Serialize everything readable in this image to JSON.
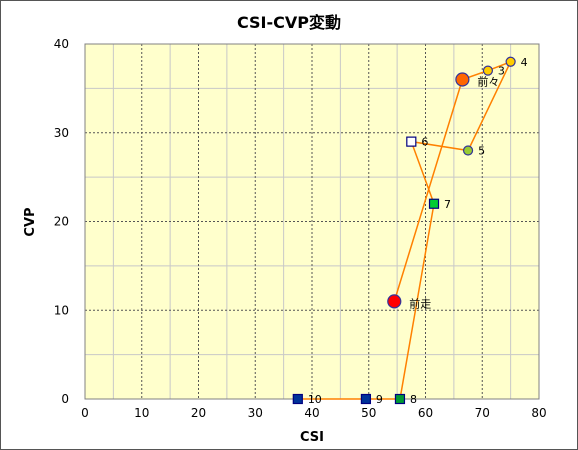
{
  "chart_data": {
    "type": "scatter",
    "title": "CSI-CVP変動",
    "xlabel": "CSI",
    "ylabel": "CVP",
    "xlim": [
      0,
      80
    ],
    "ylim": [
      0,
      40
    ],
    "x_ticks": [
      0,
      10,
      20,
      30,
      40,
      50,
      60,
      70,
      80
    ],
    "y_ticks": [
      0,
      10,
      20,
      30,
      40
    ],
    "grid": true,
    "plot_background": "#ffffcc",
    "line_color": "#ff8000",
    "points": [
      {
        "label": "前走",
        "x": 54.5,
        "y": 11,
        "marker": "circle",
        "fill": "#ff0000",
        "size": "large"
      },
      {
        "label": "前々",
        "x": 66.5,
        "y": 36,
        "marker": "circle",
        "fill": "#ff6600",
        "size": "large"
      },
      {
        "label": "3",
        "x": 71.0,
        "y": 37,
        "marker": "circle",
        "fill": "#ffcc00",
        "size": "small"
      },
      {
        "label": "4",
        "x": 75.0,
        "y": 38,
        "marker": "circle",
        "fill": "#ffcc00",
        "size": "small"
      },
      {
        "label": "5",
        "x": 67.5,
        "y": 28,
        "marker": "circle",
        "fill": "#99cc33",
        "size": "small"
      },
      {
        "label": "6",
        "x": 57.5,
        "y": 29,
        "marker": "square",
        "fill": "#ffffff",
        "size": "small"
      },
      {
        "label": "7",
        "x": 61.5,
        "y": 22,
        "marker": "square",
        "fill": "#00cc33",
        "size": "small"
      },
      {
        "label": "8",
        "x": 55.5,
        "y": 0,
        "marker": "square",
        "fill": "#009933",
        "size": "small"
      },
      {
        "label": "9",
        "x": 49.5,
        "y": 0,
        "marker": "square",
        "fill": "#003399",
        "size": "small"
      },
      {
        "label": "10",
        "x": 37.5,
        "y": 0,
        "marker": "square",
        "fill": "#003399",
        "size": "small"
      }
    ]
  }
}
